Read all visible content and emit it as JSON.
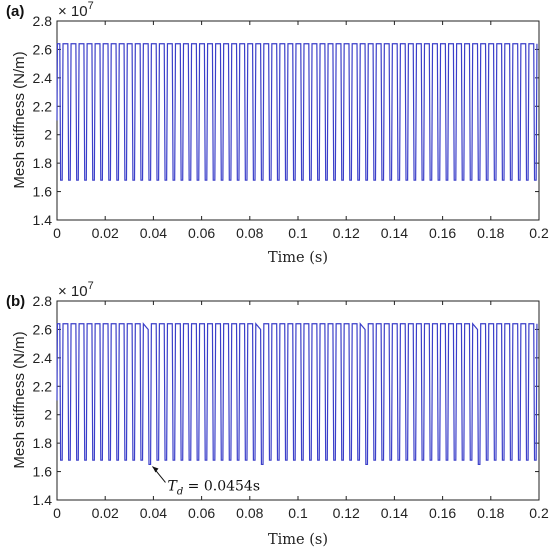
{
  "chart_data": [
    {
      "type": "line",
      "panel_label": "(a)",
      "multiplier": "× 10",
      "multiplier_exp": "7",
      "xlabel": "Time (s)",
      "ylabel": "Mesh stiffness (N/m)",
      "xlim": [
        0,
        0.2
      ],
      "ylim": [
        1.4,
        2.8
      ],
      "xticks": [
        "0",
        "0.02",
        "0.04",
        "0.06",
        "0.08",
        "0.1",
        "0.12",
        "0.14",
        "0.16",
        "0.18",
        "0.2"
      ],
      "yticks": [
        "1.4",
        "1.6",
        "1.8",
        "2",
        "2.2",
        "2.4",
        "2.6",
        "2.8"
      ],
      "grid": false,
      "line_color": "#3b3fc9",
      "series": [
        {
          "period_s": 0.003333,
          "max": 2.64,
          "min": 1.68,
          "start_value": 2.1,
          "defect_times_s": [],
          "defect_max": 2.6,
          "defect_min": 1.65
        }
      ],
      "annotation": null
    },
    {
      "type": "line",
      "panel_label": "(b)",
      "multiplier": "× 10",
      "multiplier_exp": "7",
      "xlabel": "Time (s)",
      "ylabel": "Mesh stiffness (N/m)",
      "xlim": [
        0,
        0.2
      ],
      "ylim": [
        1.4,
        2.8
      ],
      "xticks": [
        "0",
        "0.02",
        "0.04",
        "0.06",
        "0.08",
        "0.1",
        "0.12",
        "0.14",
        "0.16",
        "0.18",
        "0.2"
      ],
      "yticks": [
        "1.4",
        "1.6",
        "1.8",
        "2",
        "2.2",
        "2.4",
        "2.6",
        "2.8"
      ],
      "grid": false,
      "line_color": "#3b3fc9",
      "series": [
        {
          "period_s": 0.003333,
          "max": 2.64,
          "min": 1.68,
          "start_value": 2.1,
          "defect_times_s": [
            0.0392,
            0.0846,
            0.13,
            0.1754
          ],
          "defect_max": 2.6,
          "defect_min": 1.65
        }
      ],
      "annotation": {
        "text_main": "T",
        "text_sub": "d",
        "text_rest": " = 0.0454s",
        "arrow_to_x": 0.0392,
        "arrow_to_y": 1.65
      }
    }
  ]
}
